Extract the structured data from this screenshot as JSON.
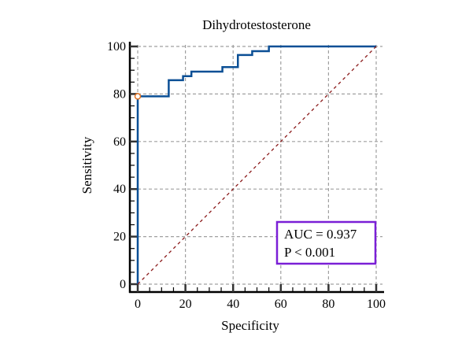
{
  "chart_data": {
    "type": "line",
    "title": "Dihydrotestosterone",
    "xlabel": "Specificity",
    "ylabel": "Sensitivity",
    "xlim": [
      0,
      100
    ],
    "ylim": [
      0,
      100
    ],
    "x_ticks": [
      0,
      20,
      40,
      60,
      80,
      100
    ],
    "y_ticks": [
      0,
      20,
      40,
      60,
      80,
      100
    ],
    "grid": true,
    "series": [
      {
        "name": "ROC curve",
        "color": "#0b4f95",
        "style": "step",
        "points": [
          [
            0,
            0
          ],
          [
            0,
            79
          ],
          [
            13,
            79
          ],
          [
            13,
            85.8
          ],
          [
            19,
            85.8
          ],
          [
            19,
            87.5
          ],
          [
            22.5,
            87.5
          ],
          [
            22.5,
            89.4
          ],
          [
            35.5,
            89.4
          ],
          [
            35.5,
            91.3
          ],
          [
            42,
            91.3
          ],
          [
            42,
            96.4
          ],
          [
            48,
            96.4
          ],
          [
            48,
            98
          ],
          [
            55,
            98
          ],
          [
            55,
            100
          ],
          [
            100,
            100
          ]
        ]
      },
      {
        "name": "Reference line",
        "color": "#8b1a1a",
        "style": "dashed",
        "points": [
          [
            0,
            0
          ],
          [
            100,
            100
          ]
        ]
      }
    ],
    "marker": {
      "x": 0,
      "y": 79,
      "color": "#e07020"
    },
    "annotation": {
      "lines": [
        "AUC = 0.937",
        "P < 0.001"
      ],
      "border_color": "#7a1fd6",
      "placement": "bottom-right"
    }
  }
}
